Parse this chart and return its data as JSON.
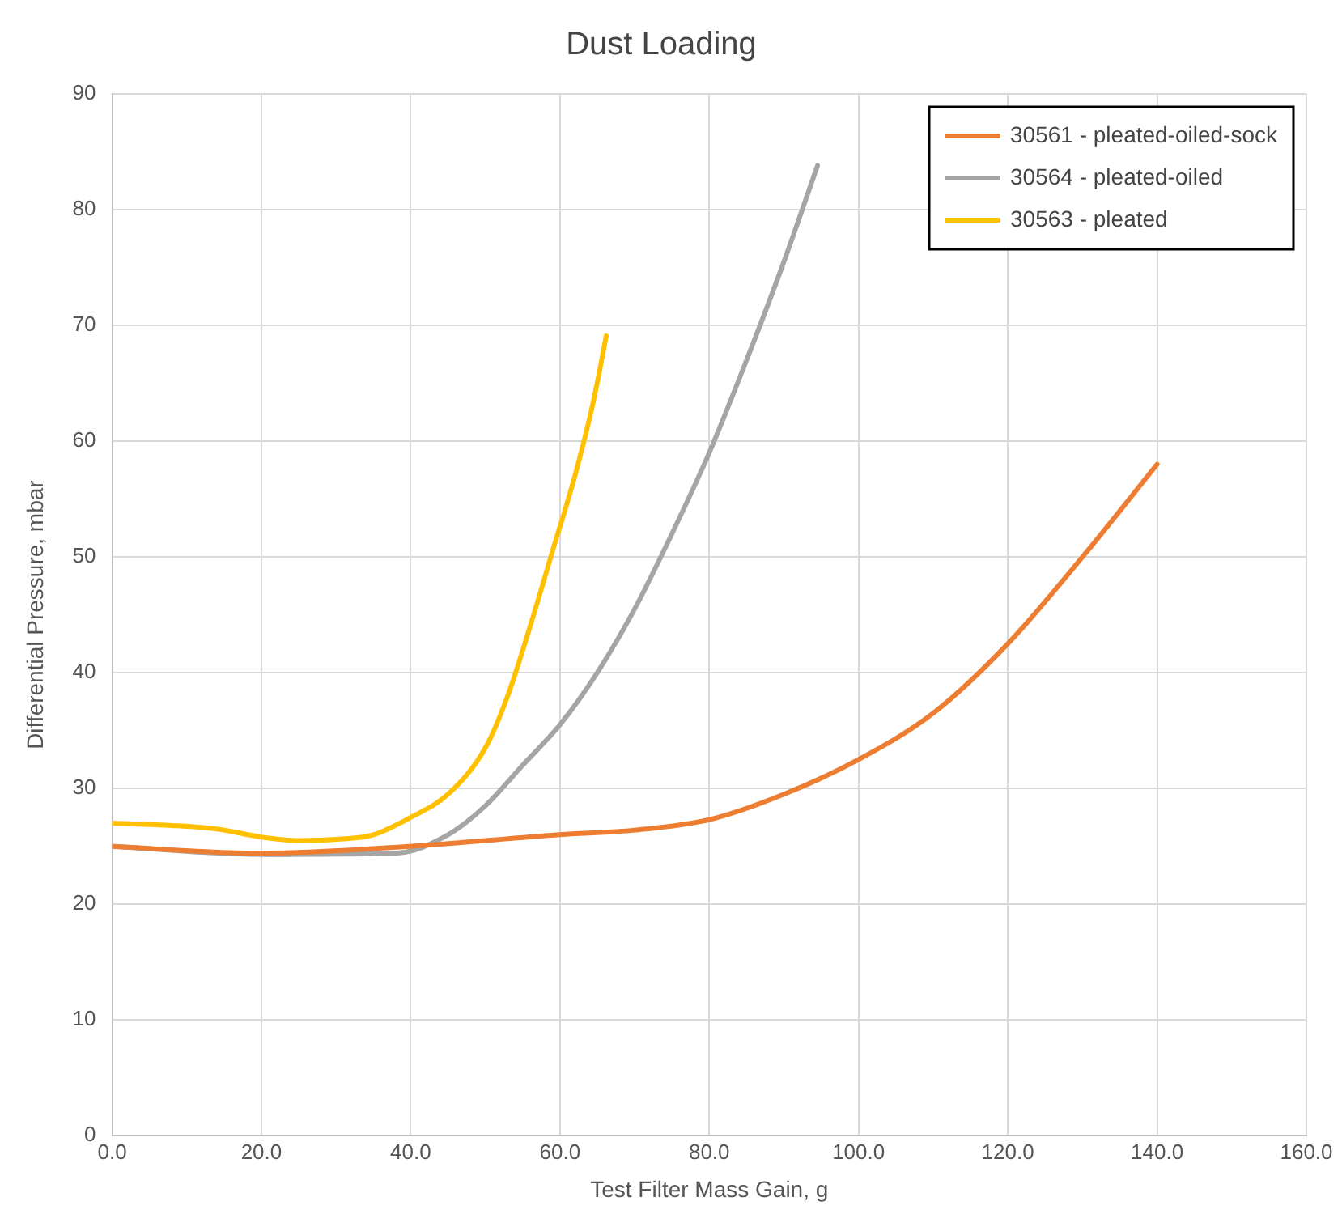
{
  "chart_data": {
    "type": "line",
    "title": "Dust Loading",
    "xlabel": "Test Filter Mass Gain, g",
    "ylabel": "Differential Pressure, mbar",
    "xlim": [
      0,
      160
    ],
    "xticks": [
      {
        "value": 0,
        "label": "0.0"
      },
      {
        "value": 20,
        "label": "20.0"
      },
      {
        "value": 40,
        "label": "40.0"
      },
      {
        "value": 60,
        "label": "60.0"
      },
      {
        "value": 80,
        "label": "80.0"
      },
      {
        "value": 100,
        "label": "100.0"
      },
      {
        "value": 120,
        "label": "120.0"
      },
      {
        "value": 140,
        "label": "140.0"
      },
      {
        "value": 160,
        "label": "160.0"
      }
    ],
    "ylim": [
      0,
      90
    ],
    "yticks": [
      0,
      10,
      20,
      30,
      40,
      50,
      60,
      70,
      80,
      90
    ],
    "grid": true,
    "legend": "top right",
    "marker": "none",
    "line_style": "solid",
    "series": [
      {
        "name": "30561 - pleated-oiled-sock",
        "color": "#ed7d31",
        "x": [
          0,
          20,
          40,
          60,
          70,
          80,
          90,
          100,
          110,
          120,
          130,
          140
        ],
        "values": [
          25,
          24.4,
          25,
          26,
          26.4,
          27.3,
          29.5,
          32.5,
          36.5,
          42.5,
          50,
          58
        ]
      },
      {
        "name": "30564 - pleated-oiled",
        "color": "#a5a5a5",
        "x": [
          0,
          20,
          38,
          45,
          50,
          55,
          60,
          65,
          70,
          75,
          80,
          85,
          90,
          94.5
        ],
        "values": [
          25,
          24.3,
          24.4,
          26,
          28.5,
          32,
          35.5,
          40,
          45.5,
          52,
          59,
          67,
          75.5,
          83.8
        ]
      },
      {
        "name": "30563 - pleated",
        "color": "#ffc000",
        "x": [
          0,
          8,
          14,
          20,
          25,
          30,
          35,
          40,
          45,
          50,
          53,
          56,
          59,
          62,
          64.5,
          66.2
        ],
        "values": [
          27,
          26.8,
          26.5,
          25.8,
          25.5,
          25.6,
          26,
          27.5,
          29.5,
          33.5,
          38,
          44,
          50.5,
          57,
          63.5,
          69.1
        ]
      }
    ]
  }
}
